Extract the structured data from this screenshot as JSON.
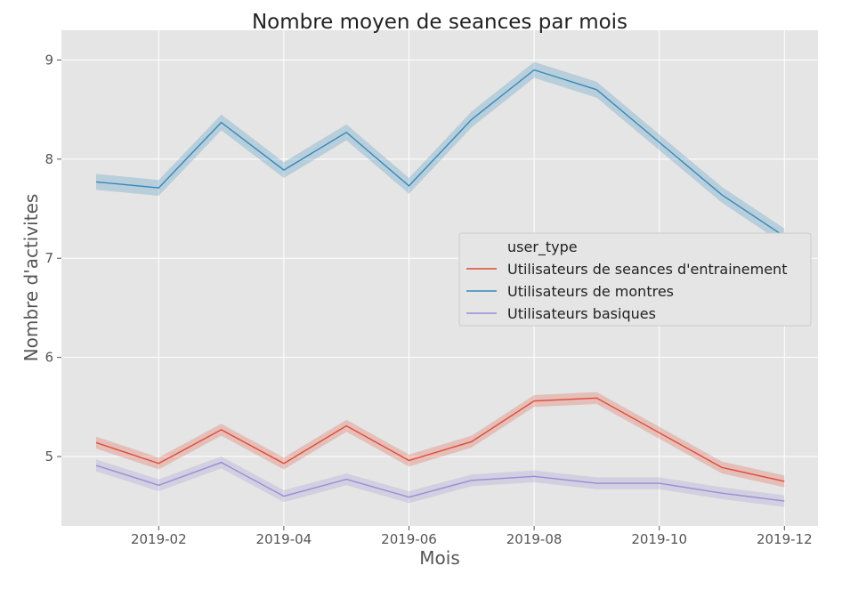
{
  "chart_data": {
    "type": "line",
    "title": "Nombre moyen de seances par mois",
    "xlabel": "Mois",
    "ylabel": "Nombre d'activites",
    "x": [
      "2019-01",
      "2019-02",
      "2019-03",
      "2019-04",
      "2019-05",
      "2019-06",
      "2019-07",
      "2019-08",
      "2019-09",
      "2019-10",
      "2019-11",
      "2019-12"
    ],
    "x_ticks": [
      "2019-02",
      "2019-04",
      "2019-06",
      "2019-08",
      "2019-10",
      "2019-12"
    ],
    "y_ticks": [
      5,
      6,
      7,
      8,
      9
    ],
    "ylim": [
      4.3,
      9.3
    ],
    "grid": true,
    "legend": {
      "title": "user_type",
      "placement": "center-right"
    },
    "series": [
      {
        "name": "Utilisateurs de seances d'entrainement",
        "color": "#E24A33",
        "values": [
          5.14,
          4.93,
          5.27,
          4.93,
          5.31,
          4.96,
          5.15,
          5.56,
          5.59,
          5.24,
          4.89,
          4.75
        ],
        "ci": 0.06
      },
      {
        "name": "Utilisateurs de montres",
        "color": "#348ABD",
        "values": [
          7.77,
          7.71,
          8.37,
          7.89,
          8.27,
          7.73,
          8.4,
          8.9,
          8.7,
          8.17,
          7.64,
          7.22
        ],
        "ci": 0.08
      },
      {
        "name": "Utilisateurs basiques",
        "color": "#988ED5",
        "values": [
          4.91,
          4.71,
          4.94,
          4.6,
          4.77,
          4.59,
          4.76,
          4.8,
          4.73,
          4.73,
          4.63,
          4.55
        ],
        "ci": 0.06
      }
    ]
  }
}
